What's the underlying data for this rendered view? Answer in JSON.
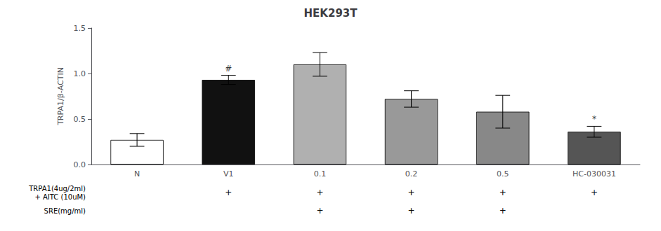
{
  "chart_data": {
    "type": "bar",
    "title": "HEK293T",
    "ylabel": "TRPA1/β-ACTIN",
    "categories": [
      "N",
      "V1",
      "0.1",
      "0.2",
      "0.5",
      "HC-030031"
    ],
    "values": [
      0.27,
      0.93,
      1.1,
      0.72,
      0.58,
      0.36
    ],
    "errors": [
      0.07,
      0.05,
      0.13,
      0.09,
      0.18,
      0.06
    ],
    "colors": [
      "#ffffff",
      "#111111",
      "#b0b0b0",
      "#999999",
      "#888888",
      "#555555"
    ],
    "ylim": [
      0.0,
      1.5
    ],
    "yticks": [
      {
        "value": 0,
        "label": "0.0"
      },
      0.5,
      {
        "value": 1,
        "label": "1.0"
      },
      1.5
    ],
    "grid": false,
    "annotations": [
      {
        "text": "#",
        "x": "V1",
        "y": 0.99
      },
      {
        "text": "*",
        "x": "HC-030031",
        "y": 0.44
      }
    ],
    "table": {
      "mark": "+",
      "rows": [
        {
          "label": [
            "TRPA1(4ug/2ml)",
            "+ AITC (10uM)"
          ],
          "marked": [
            false,
            true,
            true,
            true,
            true,
            true
          ]
        },
        {
          "label": [
            "SRE(mg/ml)"
          ],
          "marked": [
            false,
            false,
            true,
            true,
            true,
            false
          ]
        }
      ]
    }
  }
}
